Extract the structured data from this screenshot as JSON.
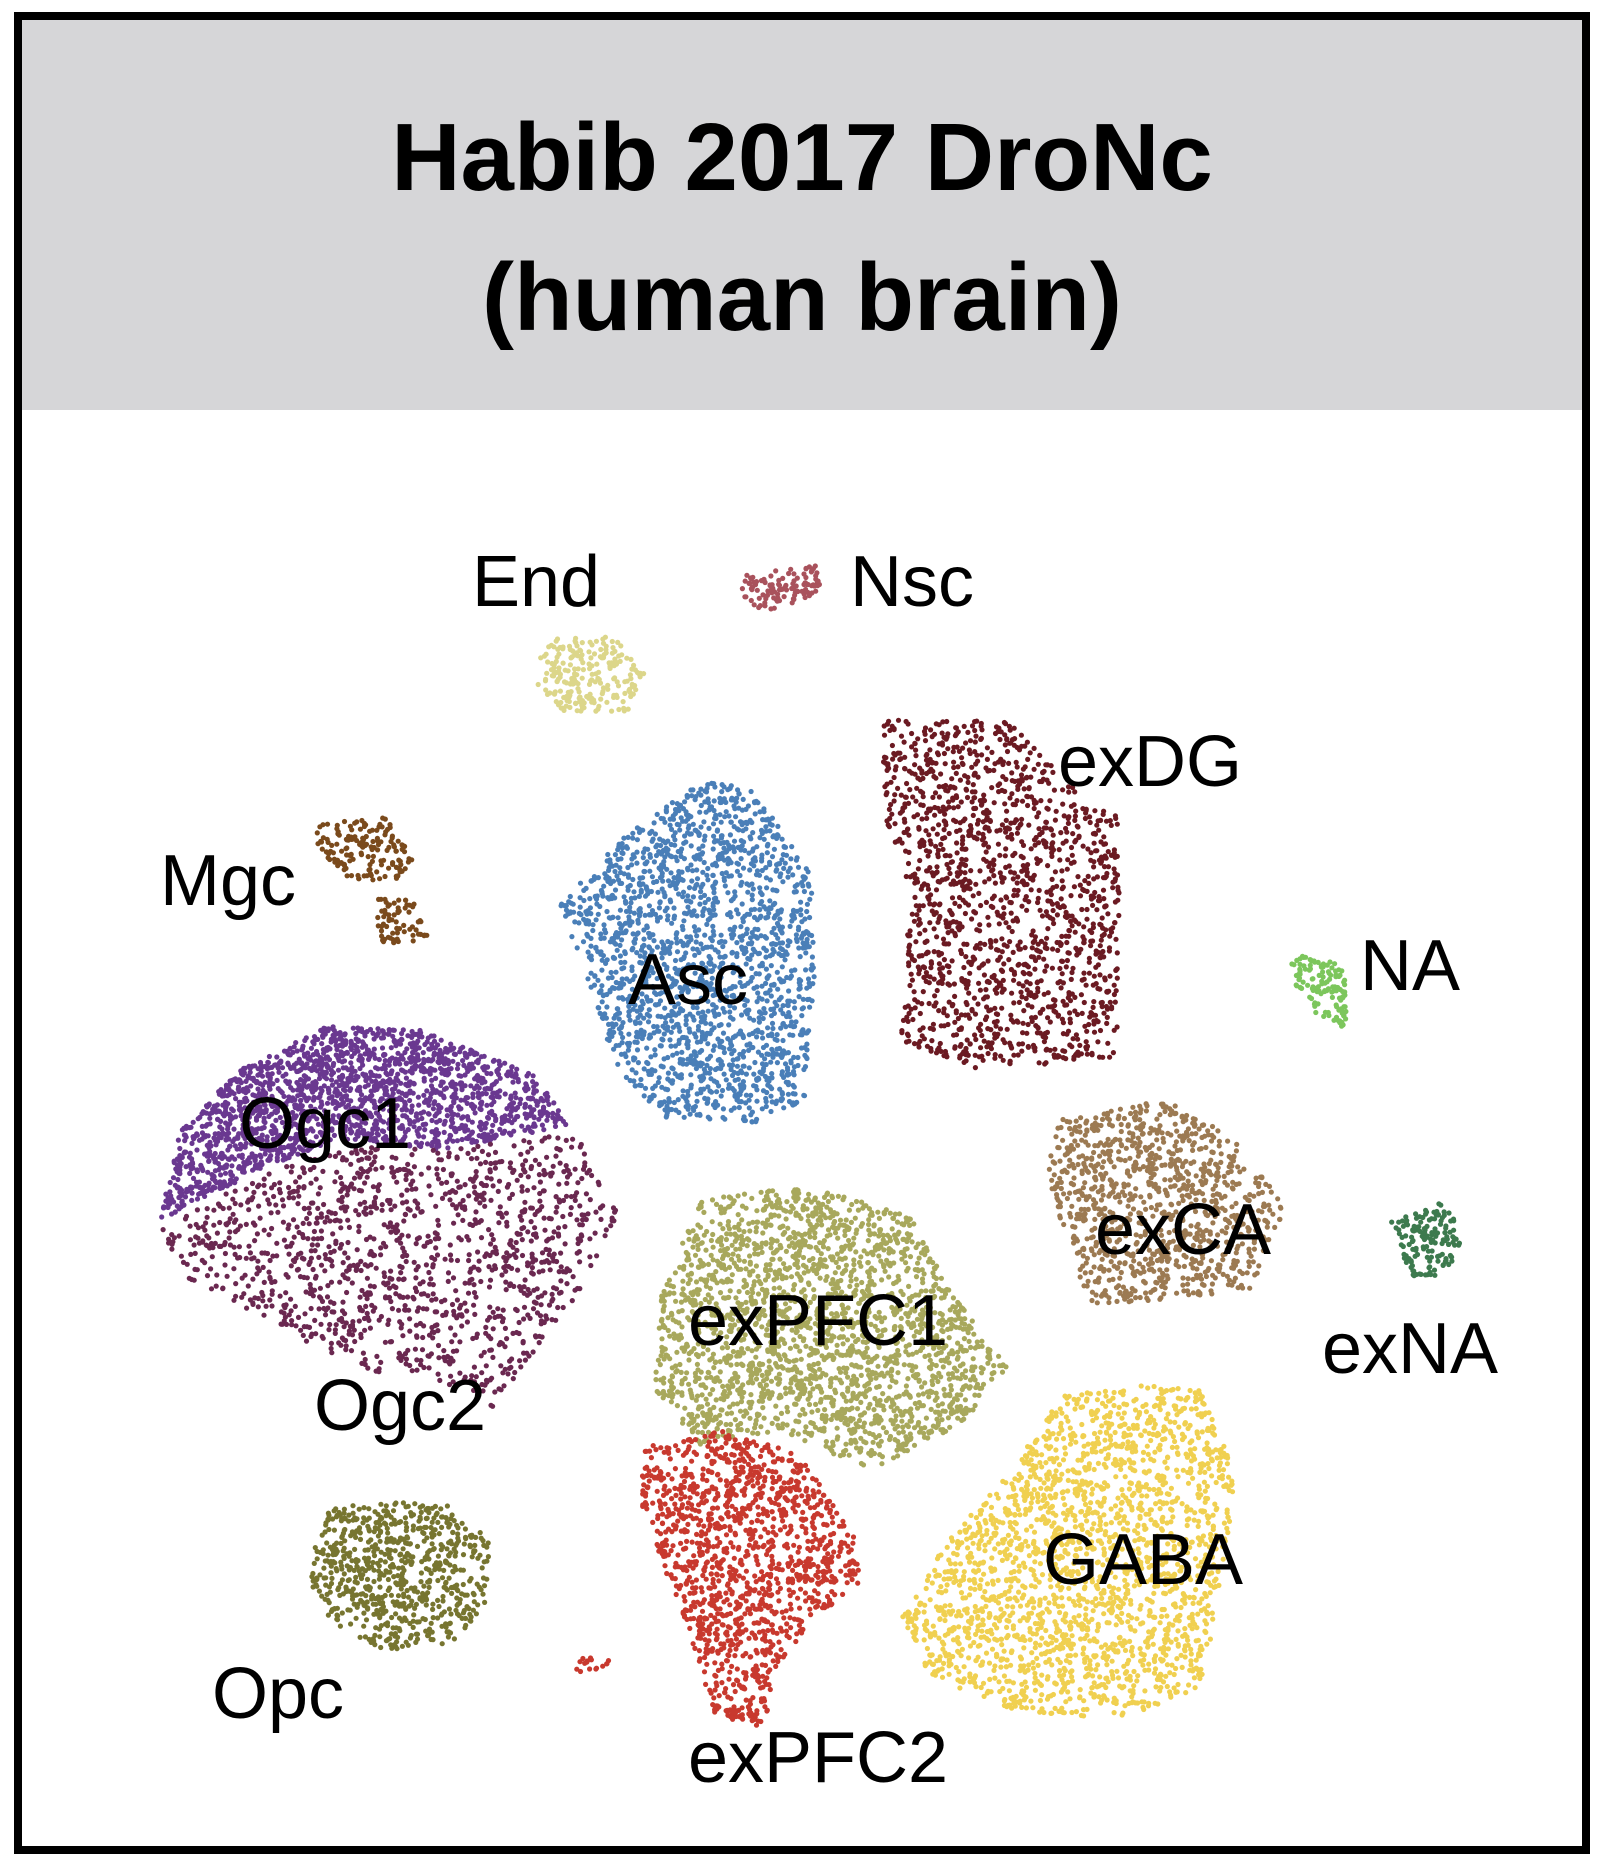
{
  "chart_data": {
    "type": "scatter",
    "title_lines": [
      "Habib 2017 DroNc",
      "(human brain)"
    ],
    "xlabel": "",
    "ylabel": "",
    "grid": false,
    "legend": "none (clusters labeled directly on plot)",
    "clusters": [
      {
        "name": "End",
        "color": "#dcd68a",
        "approx_points": 220
      },
      {
        "name": "Nsc",
        "color": "#a9525c",
        "approx_points": 110
      },
      {
        "name": "exDG",
        "color": "#6b1a22",
        "approx_points": 1500
      },
      {
        "name": "Mgc",
        "color": "#7a4a1c",
        "approx_points": 220
      },
      {
        "name": "Asc",
        "color": "#4a7fb8",
        "approx_points": 1900
      },
      {
        "name": "NA",
        "color": "#7cc65c",
        "approx_points": 130
      },
      {
        "name": "Ogc1",
        "color": "#6a3890",
        "approx_points": 1900
      },
      {
        "name": "Ogc2",
        "color": "#6a2850",
        "approx_points": 1300
      },
      {
        "name": "exCA",
        "color": "#9c7a52",
        "approx_points": 1000
      },
      {
        "name": "exNA",
        "color": "#3d7a4e",
        "approx_points": 150
      },
      {
        "name": "exPFC1",
        "color": "#a8a85c",
        "approx_points": 2200
      },
      {
        "name": "GABA",
        "color": "#f0d050",
        "approx_points": 2100
      },
      {
        "name": "exPFC2",
        "color": "#c8392e",
        "approx_points": 1300
      },
      {
        "name": "Opc",
        "color": "#777530",
        "approx_points": 700
      }
    ]
  }
}
